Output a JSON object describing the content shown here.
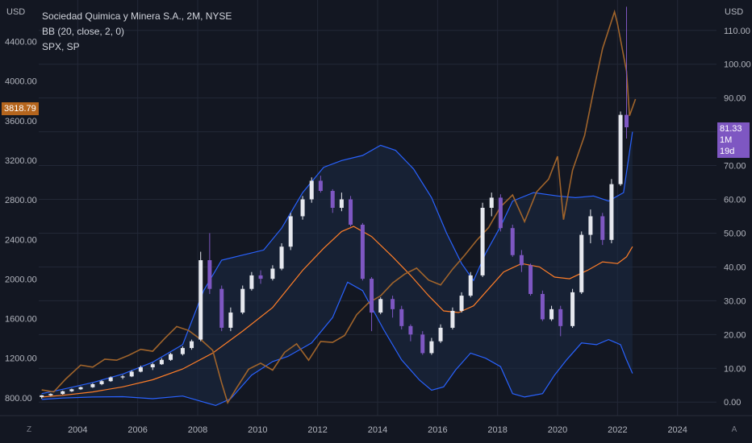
{
  "legend": {
    "title": "Sociedad Quimica y Minera S.A., 2M, NYSE",
    "indicator": "BB (20, close, 2, 0)",
    "compare": "SPX, SP"
  },
  "left_axis": {
    "unit": "USD",
    "badge_value": "3818.79",
    "badge_color": "#b5651d"
  },
  "right_axis": {
    "unit": "USD",
    "badge_value": "81.33",
    "badge_countdown": "1M 19d",
    "badge_color": "#7e57c2"
  },
  "buttons": {
    "left": "Z",
    "right": "A"
  },
  "colors": {
    "background": "#131722",
    "grid": "#232837",
    "bb_band": "#2962ff",
    "bb_basis": "#ff7e28",
    "spx": "#a0642b",
    "up_candle": "#e6e8ee",
    "down_candle": "#7e57c2",
    "band_fill": "#1c2a44"
  },
  "chart_data": {
    "type": "line",
    "title": "Sociedad Quimica y Minera S.A., 2M, NYSE",
    "x_axis": {
      "ticks": [
        "2004",
        "2006",
        "2008",
        "2010",
        "2012",
        "2014",
        "2016",
        "2018",
        "2020",
        "2022",
        "2024"
      ],
      "range": [
        2002.7,
        2025.3
      ]
    },
    "y_left": {
      "unit": "USD",
      "ticks": [
        "800.00",
        "1200.00",
        "1600.00",
        "2000.00",
        "2400.00",
        "2800.00",
        "3200.00",
        "3600.00",
        "4000.00",
        "4400.00"
      ],
      "range": [
        620,
        4820
      ]
    },
    "y_right": {
      "unit": "USD",
      "ticks": [
        "0.00",
        "10.00",
        "20.00",
        "30.00",
        "40.00",
        "50.00",
        "60.00",
        "70.00",
        "80.00",
        "90.00",
        "100.00",
        "110.00"
      ],
      "range": [
        -4,
        119
      ]
    },
    "grid": true,
    "series": [
      {
        "name": "SQM",
        "style": "candles",
        "axis": "right",
        "candles": [
          [
            2002.8,
            1.5,
            2.0,
            1.0,
            2.1
          ],
          [
            2003.1,
            2.0,
            2.4,
            1.8,
            2.6
          ],
          [
            2003.5,
            2.4,
            3.2,
            2.2,
            3.4
          ],
          [
            2003.8,
            3.2,
            3.8,
            3.0,
            4.0
          ],
          [
            2004.1,
            3.8,
            4.4,
            3.6,
            4.6
          ],
          [
            2004.5,
            4.4,
            5.3,
            4.2,
            5.6
          ],
          [
            2004.8,
            5.3,
            6.2,
            5.0,
            6.5
          ],
          [
            2005.1,
            6.2,
            7.3,
            6.0,
            7.6
          ],
          [
            2005.5,
            7.3,
            7.6,
            6.8,
            8.0
          ],
          [
            2005.8,
            7.6,
            9.0,
            7.4,
            9.4
          ],
          [
            2006.1,
            9.0,
            10.3,
            8.8,
            10.8
          ],
          [
            2006.5,
            10.3,
            11.2,
            9.5,
            11.6
          ],
          [
            2006.8,
            11.2,
            12.5,
            11.0,
            13.0
          ],
          [
            2007.1,
            12.5,
            14.2,
            12.2,
            14.6
          ],
          [
            2007.5,
            14.2,
            16.0,
            13.8,
            16.5
          ],
          [
            2007.8,
            16.0,
            18.0,
            15.5,
            18.5
          ],
          [
            2008.1,
            18.5,
            42.0,
            18.0,
            44.5
          ],
          [
            2008.4,
            42.0,
            33.5,
            32.0,
            50.0
          ],
          [
            2008.8,
            33.5,
            22.0,
            21.0,
            34.5
          ],
          [
            2009.1,
            22.0,
            26.5,
            21.0,
            28.0
          ],
          [
            2009.5,
            26.5,
            33.5,
            26.0,
            34.5
          ],
          [
            2009.8,
            33.5,
            37.5,
            33.0,
            38.5
          ],
          [
            2010.1,
            37.5,
            36.5,
            35.0,
            39.0
          ],
          [
            2010.5,
            36.5,
            39.5,
            36.0,
            40.5
          ],
          [
            2010.8,
            39.5,
            46.0,
            39.0,
            47.0
          ],
          [
            2011.1,
            46.0,
            55.0,
            45.0,
            56.0
          ],
          [
            2011.5,
            55.0,
            60.0,
            54.0,
            61.0
          ],
          [
            2011.8,
            60.0,
            65.5,
            59.0,
            66.5
          ],
          [
            2012.1,
            65.5,
            62.5,
            62.0,
            67.0
          ],
          [
            2012.5,
            62.5,
            57.5,
            56.0,
            63.0
          ],
          [
            2012.8,
            57.5,
            60.0,
            56.5,
            62.0
          ],
          [
            2013.1,
            60.0,
            52.5,
            52.0,
            61.0
          ],
          [
            2013.5,
            52.5,
            36.5,
            36.0,
            53.0
          ],
          [
            2013.8,
            36.5,
            26.5,
            21.0,
            37.0
          ],
          [
            2014.1,
            26.5,
            30.5,
            26.0,
            31.0
          ],
          [
            2014.5,
            30.5,
            27.5,
            25.0,
            31.5
          ],
          [
            2014.8,
            27.5,
            22.5,
            21.5,
            28.5
          ],
          [
            2015.1,
            22.5,
            20.0,
            18.0,
            23.0
          ],
          [
            2015.5,
            20.0,
            14.5,
            14.0,
            21.0
          ],
          [
            2015.8,
            14.5,
            18.0,
            14.0,
            19.0
          ],
          [
            2016.1,
            18.0,
            22.0,
            17.5,
            23.0
          ],
          [
            2016.5,
            22.0,
            27.0,
            21.5,
            28.0
          ],
          [
            2016.8,
            27.0,
            31.5,
            26.5,
            32.5
          ],
          [
            2017.1,
            31.5,
            37.5,
            31.0,
            38.5
          ],
          [
            2017.5,
            37.5,
            57.5,
            37.0,
            59.0
          ],
          [
            2017.8,
            57.5,
            60.5,
            55.0,
            62.0
          ],
          [
            2018.1,
            60.5,
            51.5,
            50.5,
            61.5
          ],
          [
            2018.5,
            51.5,
            43.5,
            43.0,
            52.5
          ],
          [
            2018.8,
            43.5,
            40.5,
            38.5,
            45.0
          ],
          [
            2019.1,
            40.5,
            32.0,
            31.5,
            41.0
          ],
          [
            2019.5,
            32.0,
            24.5,
            24.0,
            33.0
          ],
          [
            2019.8,
            24.5,
            27.5,
            24.0,
            28.5
          ],
          [
            2020.1,
            27.5,
            22.5,
            19.5,
            28.5
          ],
          [
            2020.5,
            22.5,
            32.5,
            22.0,
            33.5
          ],
          [
            2020.8,
            32.5,
            49.5,
            32.0,
            50.5
          ],
          [
            2021.1,
            49.5,
            55.0,
            47.0,
            57.0
          ],
          [
            2021.5,
            55.0,
            48.0,
            46.5,
            56.0
          ],
          [
            2021.8,
            48.0,
            64.5,
            47.0,
            66.0
          ],
          [
            2022.1,
            64.5,
            85.0,
            64.0,
            86.0
          ],
          [
            2022.3,
            85.0,
            81.33,
            78.0,
            117.0
          ]
        ]
      },
      {
        "name": "BB upper",
        "style": "line",
        "axis": "right",
        "points": [
          [
            2002.8,
            2.5
          ],
          [
            2003.5,
            3.8
          ],
          [
            2004.5,
            5.8
          ],
          [
            2005.5,
            8.3
          ],
          [
            2006.5,
            11.8
          ],
          [
            2007.5,
            17.0
          ],
          [
            2008.2,
            33.0
          ],
          [
            2008.8,
            42.0
          ],
          [
            2009.5,
            43.5
          ],
          [
            2010.2,
            45.0
          ],
          [
            2010.8,
            51.5
          ],
          [
            2011.5,
            62.0
          ],
          [
            2012.2,
            69.5
          ],
          [
            2012.8,
            71.5
          ],
          [
            2013.5,
            73.0
          ],
          [
            2014.1,
            76.0
          ],
          [
            2014.6,
            74.5
          ],
          [
            2015.2,
            69.0
          ],
          [
            2015.8,
            60.5
          ],
          [
            2016.3,
            50.0
          ],
          [
            2016.8,
            41.0
          ],
          [
            2017.2,
            36.0
          ],
          [
            2017.6,
            44.0
          ],
          [
            2018.1,
            52.0
          ],
          [
            2018.5,
            59.5
          ],
          [
            2019.2,
            62.0
          ],
          [
            2020.0,
            61.0
          ],
          [
            2020.6,
            60.5
          ],
          [
            2021.2,
            61.0
          ],
          [
            2021.7,
            59.5
          ],
          [
            2022.2,
            62.0
          ],
          [
            2022.5,
            80.0
          ]
        ]
      },
      {
        "name": "BB basis",
        "style": "line",
        "axis": "right",
        "points": [
          [
            2002.8,
            1.5
          ],
          [
            2003.5,
            2.0
          ],
          [
            2004.5,
            3.0
          ],
          [
            2005.5,
            4.5
          ],
          [
            2006.5,
            6.6
          ],
          [
            2007.5,
            9.8
          ],
          [
            2008.5,
            14.5
          ],
          [
            2009.5,
            21.0
          ],
          [
            2010.5,
            28.0
          ],
          [
            2011.5,
            39.0
          ],
          [
            2012.2,
            45.5
          ],
          [
            2012.8,
            50.5
          ],
          [
            2013.2,
            52.0
          ],
          [
            2013.8,
            49.0
          ],
          [
            2014.5,
            43.0
          ],
          [
            2015.1,
            37.5
          ],
          [
            2015.7,
            31.5
          ],
          [
            2016.2,
            27.0
          ],
          [
            2016.7,
            26.5
          ],
          [
            2017.2,
            28.5
          ],
          [
            2017.7,
            33.5
          ],
          [
            2018.2,
            38.5
          ],
          [
            2018.8,
            41.0
          ],
          [
            2019.4,
            40.0
          ],
          [
            2019.9,
            37.0
          ],
          [
            2020.4,
            36.5
          ],
          [
            2021.0,
            39.0
          ],
          [
            2021.5,
            41.5
          ],
          [
            2022.0,
            41.0
          ],
          [
            2022.3,
            43.0
          ],
          [
            2022.5,
            46.0
          ]
        ]
      },
      {
        "name": "BB lower",
        "style": "line",
        "axis": "right",
        "points": [
          [
            2002.8,
            0.8
          ],
          [
            2003.5,
            1.2
          ],
          [
            2004.5,
            1.5
          ],
          [
            2005.5,
            1.6
          ],
          [
            2006.5,
            1.0
          ],
          [
            2007.5,
            1.8
          ],
          [
            2008.2,
            0.0
          ],
          [
            2008.6,
            -1.0
          ],
          [
            2009.1,
            1.0
          ],
          [
            2009.8,
            8.0
          ],
          [
            2010.5,
            12.0
          ],
          [
            2011.0,
            13.5
          ],
          [
            2011.8,
            17.5
          ],
          [
            2012.5,
            25.0
          ],
          [
            2013.0,
            35.5
          ],
          [
            2013.5,
            33.0
          ],
          [
            2014.2,
            21.5
          ],
          [
            2014.8,
            12.5
          ],
          [
            2015.4,
            6.5
          ],
          [
            2015.8,
            3.5
          ],
          [
            2016.2,
            4.5
          ],
          [
            2016.6,
            9.5
          ],
          [
            2017.1,
            14.5
          ],
          [
            2017.6,
            13.0
          ],
          [
            2018.1,
            10.5
          ],
          [
            2018.5,
            2.5
          ],
          [
            2018.9,
            1.5
          ],
          [
            2019.5,
            2.5
          ],
          [
            2019.9,
            8.0
          ],
          [
            2020.3,
            12.5
          ],
          [
            2020.8,
            17.5
          ],
          [
            2021.3,
            17.0
          ],
          [
            2021.7,
            18.5
          ],
          [
            2022.1,
            17.0
          ],
          [
            2022.3,
            12.5
          ],
          [
            2022.5,
            8.5
          ]
        ]
      },
      {
        "name": "SPX",
        "style": "line",
        "axis": "left",
        "points": [
          [
            2002.8,
            880
          ],
          [
            2003.2,
            860
          ],
          [
            2003.6,
            990
          ],
          [
            2004.1,
            1130
          ],
          [
            2004.5,
            1110
          ],
          [
            2004.9,
            1190
          ],
          [
            2005.3,
            1180
          ],
          [
            2005.7,
            1230
          ],
          [
            2006.1,
            1290
          ],
          [
            2006.5,
            1270
          ],
          [
            2006.9,
            1400
          ],
          [
            2007.3,
            1520
          ],
          [
            2007.7,
            1480
          ],
          [
            2008.1,
            1390
          ],
          [
            2008.5,
            1280
          ],
          [
            2008.8,
            950
          ],
          [
            2009.0,
            750
          ],
          [
            2009.3,
            900
          ],
          [
            2009.7,
            1090
          ],
          [
            2010.1,
            1150
          ],
          [
            2010.5,
            1080
          ],
          [
            2010.9,
            1260
          ],
          [
            2011.3,
            1345
          ],
          [
            2011.7,
            1180
          ],
          [
            2012.1,
            1370
          ],
          [
            2012.5,
            1360
          ],
          [
            2012.9,
            1430
          ],
          [
            2013.3,
            1640
          ],
          [
            2013.7,
            1760
          ],
          [
            2014.1,
            1830
          ],
          [
            2014.5,
            1960
          ],
          [
            2014.9,
            2050
          ],
          [
            2015.3,
            2110
          ],
          [
            2015.7,
            1990
          ],
          [
            2016.1,
            1940
          ],
          [
            2016.5,
            2100
          ],
          [
            2016.9,
            2240
          ],
          [
            2017.3,
            2390
          ],
          [
            2017.7,
            2520
          ],
          [
            2018.1,
            2730
          ],
          [
            2018.5,
            2850
          ],
          [
            2018.9,
            2580
          ],
          [
            2019.3,
            2880
          ],
          [
            2019.7,
            3010
          ],
          [
            2020.0,
            3240
          ],
          [
            2020.2,
            2600
          ],
          [
            2020.5,
            3100
          ],
          [
            2020.9,
            3450
          ],
          [
            2021.2,
            3900
          ],
          [
            2021.5,
            4330
          ],
          [
            2021.9,
            4700
          ],
          [
            2022.0,
            4580
          ],
          [
            2022.3,
            4100
          ],
          [
            2022.4,
            3650
          ],
          [
            2022.6,
            3818.79
          ]
        ]
      }
    ]
  }
}
